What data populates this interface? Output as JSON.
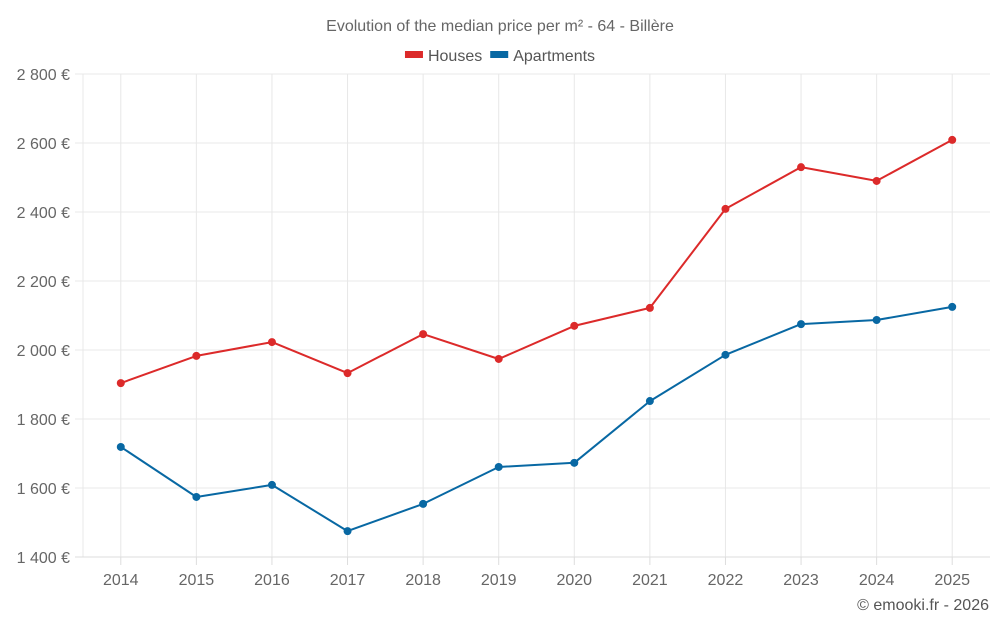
{
  "chart_data": {
    "type": "line",
    "title": "Evolution of the median price per m² - 64 - Billère",
    "xlabel": "",
    "ylabel": "",
    "categories": [
      "2014",
      "2015",
      "2016",
      "2017",
      "2018",
      "2019",
      "2020",
      "2021",
      "2022",
      "2023",
      "2024",
      "2025"
    ],
    "series": [
      {
        "name": "Houses",
        "color": "#dc2a2a",
        "values": [
          1904,
          1983,
          2023,
          1933,
          2046,
          1974,
          2070,
          2122,
          2409,
          2530,
          2490,
          2609
        ]
      },
      {
        "name": "Apartments",
        "color": "#0868a3",
        "values": [
          1719,
          1574,
          1609,
          1475,
          1554,
          1661,
          1673,
          1852,
          1986,
          2075,
          2087,
          2125
        ]
      }
    ],
    "ylim": [
      1400,
      2800
    ],
    "yticks": [
      1400,
      1600,
      1800,
      2000,
      2200,
      2400,
      2600,
      2800
    ],
    "ytick_labels": [
      "1 400 €",
      "1 600 €",
      "1 800 €",
      "2 000 €",
      "2 200 €",
      "2 400 €",
      "2 600 €",
      "2 800 €"
    ],
    "grid": true,
    "legend_position": "top-center",
    "credit": "© emooki.fr - 2026"
  }
}
